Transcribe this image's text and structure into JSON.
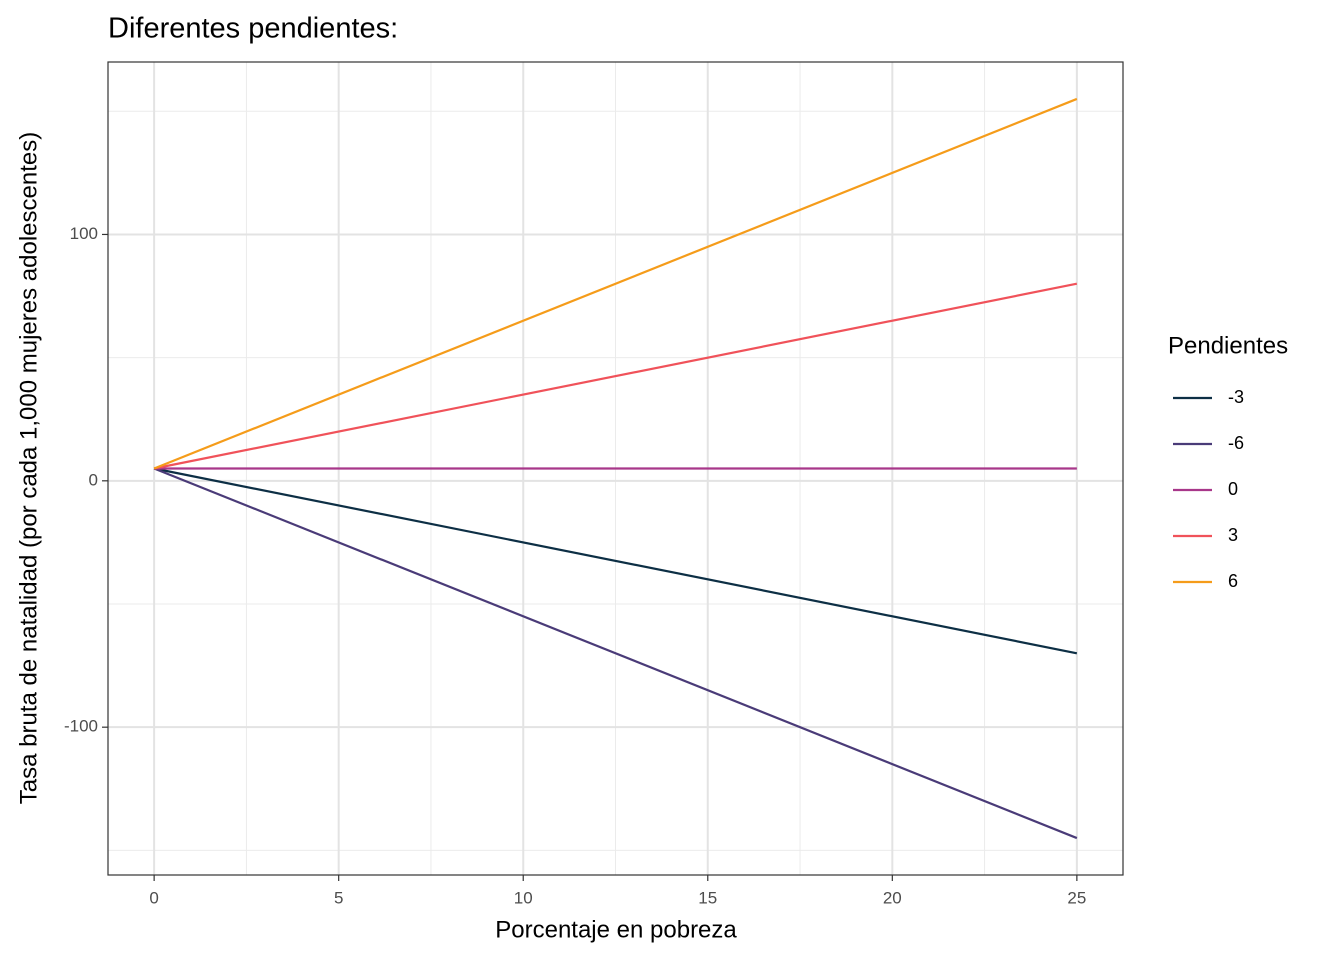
{
  "chart_data": {
    "type": "line",
    "title": "Diferentes pendientes:",
    "x_label": "Porcentaje en pobreza",
    "y_label": "Tasa bruta de natalidad (por cada 1,000 mujeres adolescentes)",
    "legend_title": "Pendientes",
    "x": [
      0,
      25
    ],
    "series": [
      {
        "name": "-3",
        "color": "#0d2f45",
        "values": [
          5,
          -70
        ]
      },
      {
        "name": "-6",
        "color": "#4a3b78",
        "values": [
          5,
          -145
        ]
      },
      {
        "name": "0",
        "color": "#a8378a",
        "values": [
          5,
          5
        ]
      },
      {
        "name": "3",
        "color": "#f0525a",
        "values": [
          5,
          80
        ]
      },
      {
        "name": "6",
        "color": "#f59c1a",
        "values": [
          5,
          155
        ]
      }
    ],
    "xlim": [
      -1.25,
      26.25
    ],
    "xticks": [
      0,
      5,
      10,
      15,
      20,
      25
    ],
    "ylim": [
      -160,
      170
    ],
    "yticks": [
      -100,
      0,
      100
    ],
    "x_minor_grid": [
      2.5,
      7.5,
      12.5,
      17.5,
      22.5
    ],
    "y_minor_grid": [
      -150,
      -50,
      50,
      150
    ],
    "grid": true,
    "legend": "right"
  }
}
